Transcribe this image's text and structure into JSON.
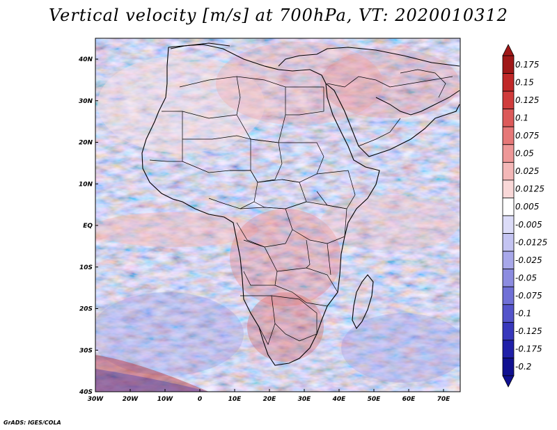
{
  "title": "Vertical velocity [m/s] at 700hPa, VT: 2020010312",
  "footer": "GrADS: IGES/COLA",
  "map": {
    "region": "Africa and Middle East",
    "lat_ticks": [
      "40N",
      "30N",
      "20N",
      "10N",
      "EQ",
      "10S",
      "20S",
      "30S",
      "40S"
    ],
    "lon_ticks": [
      "30W",
      "20W",
      "10W",
      "0",
      "10E",
      "20E",
      "30E",
      "40E",
      "50E",
      "60E",
      "70E"
    ]
  },
  "colorbar": {
    "labels": [
      "0.175",
      "0.15",
      "0.125",
      "0.1",
      "0.075",
      "0.05",
      "0.025",
      "0.0125",
      "0.005",
      "-0.005",
      "-0.0125",
      "-0.025",
      "-0.05",
      "-0.075",
      "-0.1",
      "-0.125",
      "-0.175",
      "-0.2"
    ],
    "colors": [
      "#a01818",
      "#c02828",
      "#d03c3c",
      "#dc5a5a",
      "#e67878",
      "#ee9898",
      "#f4b8b8",
      "#f9d8d8",
      "#ffffff",
      "#dcdcf8",
      "#c4c4f2",
      "#a8a8ea",
      "#8c8ce0",
      "#7070d6",
      "#5454ca",
      "#3838bc",
      "#2020a8",
      "#101090"
    ]
  }
}
